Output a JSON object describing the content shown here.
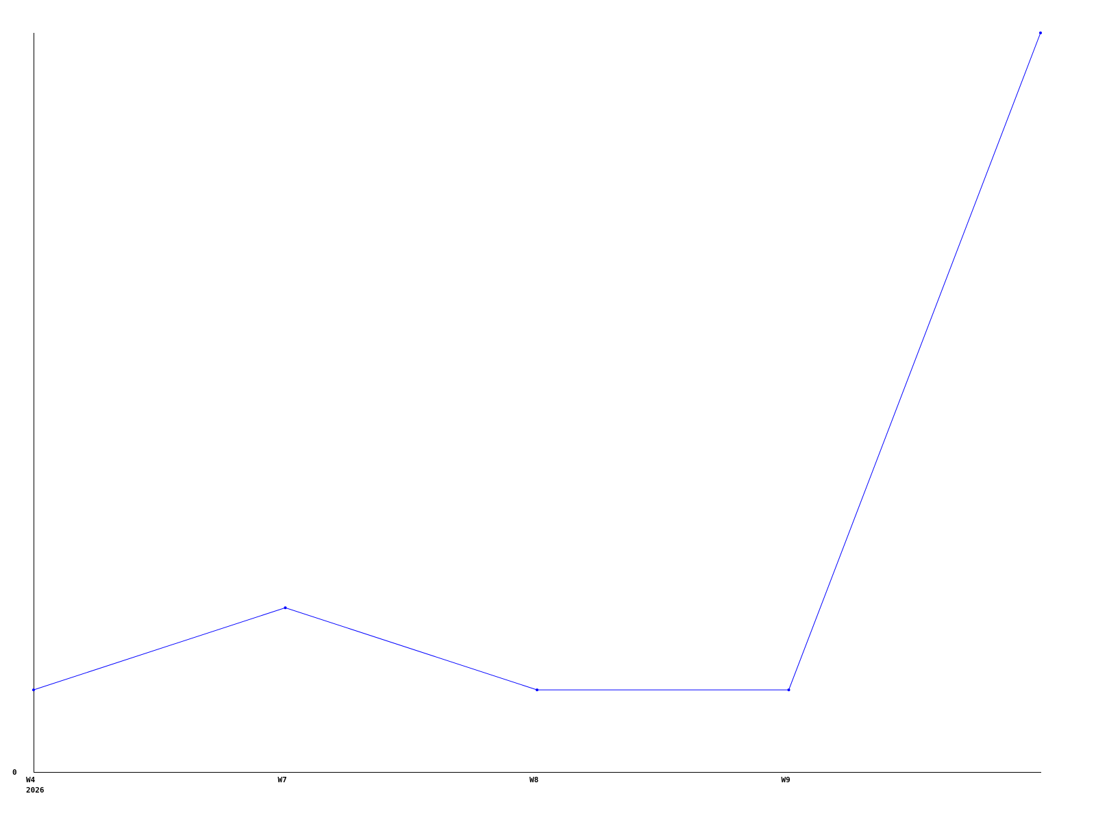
{
  "chart_data": {
    "type": "line",
    "title": "",
    "xlabel": "",
    "ylabel": "",
    "categories": [
      "W4",
      "W7",
      "W8",
      "W9",
      ""
    ],
    "year_label": "2026",
    "values": [
      1,
      2,
      1,
      1,
      9
    ],
    "ylim": [
      0,
      9
    ],
    "y_tick_labels": [
      "0"
    ],
    "grid": false,
    "legend": "none",
    "line_color": "#0000ff",
    "axis_color": "#000000"
  }
}
